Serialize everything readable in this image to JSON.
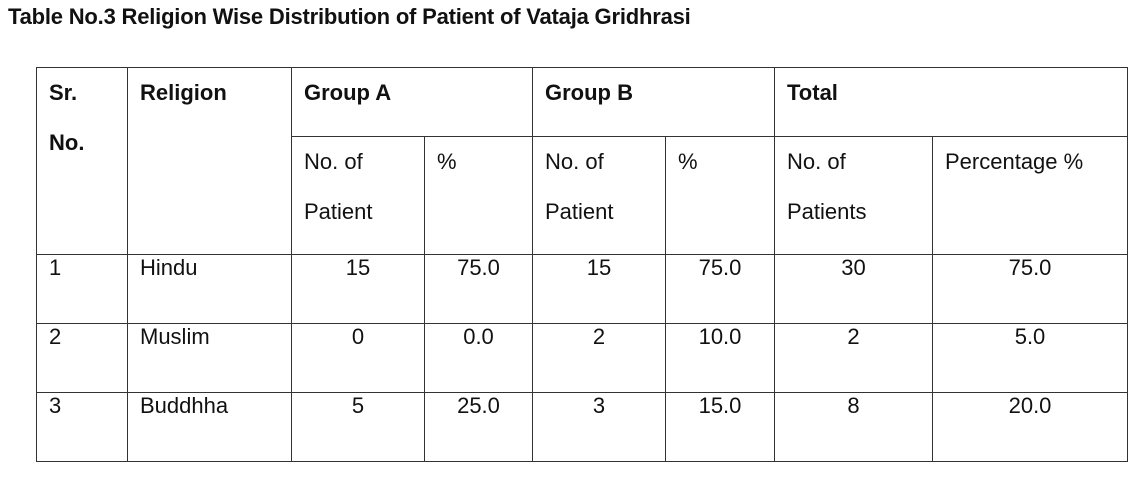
{
  "caption": "Table No.3 Religion Wise Distribution of Patient of Vataja Gridhrasi",
  "header": {
    "sr_line1": "Sr.",
    "sr_line2": "No.",
    "religion": "Religion",
    "group_a": "Group A",
    "group_b": "Group B",
    "total": "Total",
    "a_no_line1": "No. of",
    "a_no_line2": "Patient",
    "a_pct": "%",
    "b_no_line1": "No. of",
    "b_no_line2": "Patient",
    "b_pct": "%",
    "t_no_line1": "No. of",
    "t_no_line2": "Patients",
    "t_pct": "Percentage %"
  },
  "rows": [
    {
      "sr": "1",
      "religion": "Hindu",
      "a_no": "15",
      "a_pct": "75.0",
      "b_no": "15",
      "b_pct": "75.0",
      "t_no": "30",
      "t_pct": "75.0"
    },
    {
      "sr": "2",
      "religion": "Muslim",
      "a_no": "0",
      "a_pct": "0.0",
      "b_no": "2",
      "b_pct": "10.0",
      "t_no": "2",
      "t_pct": "5.0"
    },
    {
      "sr": "3",
      "religion": "Buddhha",
      "a_no": "5",
      "a_pct": "25.0",
      "b_no": "3",
      "b_pct": "15.0",
      "t_no": "8",
      "t_pct": "20.0"
    }
  ]
}
